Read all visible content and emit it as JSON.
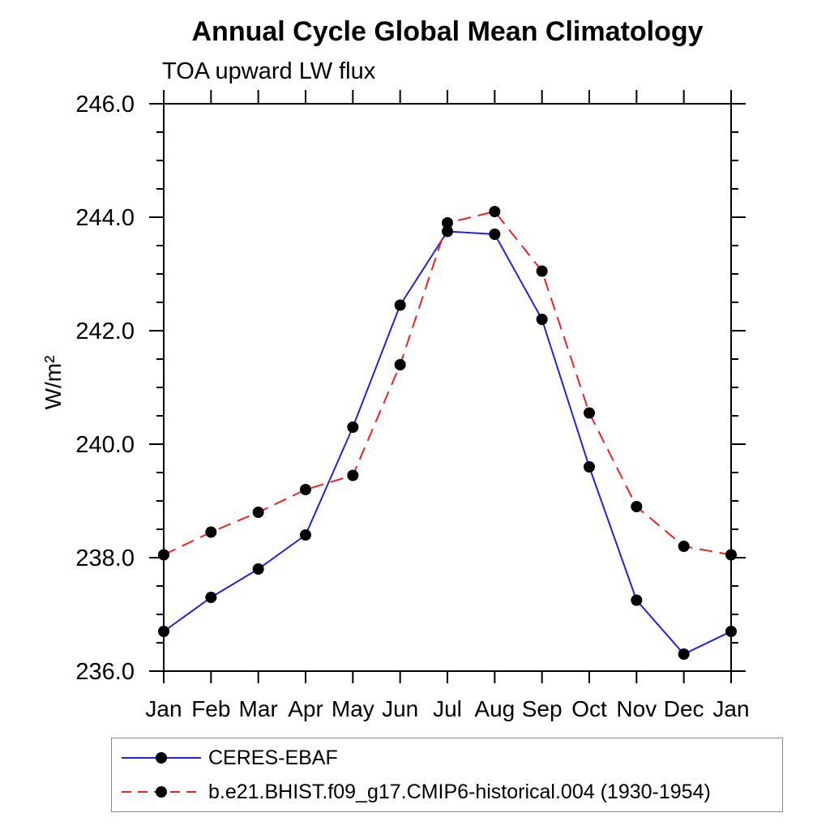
{
  "header": {
    "title": "Annual Cycle Global Mean Climatology",
    "subtitle": "TOA upward LW flux"
  },
  "chart_data": {
    "type": "line",
    "title": "Annual Cycle Global Mean Climatology",
    "subtitle": "TOA upward LW flux",
    "xlabel": "",
    "ylabel": "W/m²",
    "categories": [
      "Jan",
      "Feb",
      "Mar",
      "Apr",
      "May",
      "Jun",
      "Jul",
      "Aug",
      "Sep",
      "Oct",
      "Nov",
      "Dec",
      "Jan"
    ],
    "ylim": [
      236.0,
      246.0
    ],
    "y_major_step": 2.0,
    "y_minor_step": 0.5,
    "y_tick_labels": [
      "236.0",
      "238.0",
      "240.0",
      "242.0",
      "244.0",
      "246.0"
    ],
    "grid": "off",
    "legend_position": "bottom-left",
    "axis_color": "#000000",
    "marker_color": "#000000",
    "series": [
      {
        "name": "CERES-EBAF",
        "color": "#2222dd",
        "line_style": "solid",
        "marker": "filled-circle",
        "values": [
          236.7,
          237.3,
          237.8,
          238.4,
          240.3,
          242.45,
          243.75,
          243.7,
          242.2,
          239.6,
          237.25,
          236.3,
          236.7
        ]
      },
      {
        "name": "b.e21.BHIST.f09_g17.CMIP6-historical.004 (1930-1954)",
        "color": "#ee2222",
        "line_style": "dashed",
        "marker": "filled-circle",
        "values": [
          238.05,
          238.45,
          238.8,
          239.2,
          239.45,
          241.4,
          243.9,
          244.1,
          243.05,
          240.55,
          238.9,
          238.2,
          238.05
        ]
      }
    ]
  }
}
